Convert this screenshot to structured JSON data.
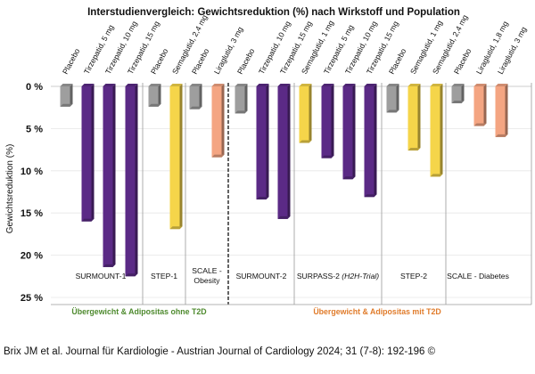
{
  "chart_data": {
    "type": "bar",
    "title": "Interstudienvergleich: Gewichtsreduktion (%) nach Wirkstoff und Population",
    "ylabel": "Gewichtsreduktion (%)",
    "ylim": [
      0,
      25
    ],
    "y_ticks": [
      "0 %",
      "5 %",
      "10 %",
      "15 %",
      "20 %",
      "25 %"
    ],
    "y_tick_values": [
      0,
      5,
      10,
      15,
      20,
      25
    ],
    "orientation": "downward bars from 0 %",
    "bars": [
      {
        "label": "Placebo",
        "value": 2.4,
        "color": "#9e9e9e",
        "study": "SURMOUNT-1"
      },
      {
        "label": "Tirzepatid, 5 mg",
        "value": 16.0,
        "color": "#5b2a86",
        "study": "SURMOUNT-1"
      },
      {
        "label": "Tirzepatid, 10 mg",
        "value": 21.4,
        "color": "#5b2a86",
        "study": "SURMOUNT-1"
      },
      {
        "label": "Tirzepatid, 15 mg",
        "value": 22.5,
        "color": "#5b2a86",
        "study": "SURMOUNT-1"
      },
      {
        "label": "Placebo",
        "value": 2.4,
        "color": "#9e9e9e",
        "study": "STEP-1"
      },
      {
        "label": "Semaglutid, 2,4 mg",
        "value": 16.9,
        "color": "#f5d54a",
        "study": "STEP-1"
      },
      {
        "label": "Placebo",
        "value": 2.7,
        "color": "#9e9e9e",
        "study": "SCALE - Obesity"
      },
      {
        "label": "Liraglutid, 3 mg",
        "value": 8.4,
        "color": "#f4a582",
        "study": "SCALE - Obesity"
      },
      {
        "label": "Placebo",
        "value": 3.2,
        "color": "#9e9e9e",
        "study": "SURMOUNT-2"
      },
      {
        "label": "Tirzepatid, 10 mg",
        "value": 13.4,
        "color": "#5b2a86",
        "study": "SURMOUNT-2"
      },
      {
        "label": "Tirzepatid, 15 mg",
        "value": 15.7,
        "color": "#5b2a86",
        "study": "SURMOUNT-2"
      },
      {
        "label": "Semaglutid, 1 mg",
        "value": 6.7,
        "color": "#f5d54a",
        "study": "SURPASS-2 (H2H-Trial)"
      },
      {
        "label": "Tirzepatid, 5 mg",
        "value": 8.5,
        "color": "#5b2a86",
        "study": "SURPASS-2 (H2H-Trial)"
      },
      {
        "label": "Tirzepatid, 10 mg",
        "value": 11.0,
        "color": "#5b2a86",
        "study": "SURPASS-2 (H2H-Trial)"
      },
      {
        "label": "Tirzepatid, 15 mg",
        "value": 13.1,
        "color": "#5b2a86",
        "study": "SURPASS-2 (H2H-Trial)"
      },
      {
        "label": "Placebo",
        "value": 3.1,
        "color": "#9e9e9e",
        "study": "STEP-2"
      },
      {
        "label": "Semaglutid, 1 mg",
        "value": 7.6,
        "color": "#f5d54a",
        "study": "STEP-2"
      },
      {
        "label": "Semaglutid, 2,4 mg",
        "value": 10.7,
        "color": "#f5d54a",
        "study": "STEP-2"
      },
      {
        "label": "Placebo",
        "value": 2.0,
        "color": "#9e9e9e",
        "study": "SCALE - Diabetes"
      },
      {
        "label": "Liraglutid, 1,8 mg",
        "value": 4.7,
        "color": "#f4a582",
        "study": "SCALE - Diabetes"
      },
      {
        "label": "Liraglutid, 3 mg",
        "value": 6.0,
        "color": "#f4a582",
        "study": "SCALE - Diabetes"
      }
    ],
    "studies": [
      {
        "name": "SURMOUNT-1",
        "italic_suffix": ""
      },
      {
        "name": "STEP-1",
        "italic_suffix": ""
      },
      {
        "name": "SCALE -",
        "name_line2": "Obesity",
        "italic_suffix": ""
      },
      {
        "name": "SURMOUNT-2",
        "italic_suffix": ""
      },
      {
        "name": "SURPASS-2 ",
        "italic_suffix": "(H2H-Trial)"
      },
      {
        "name": "STEP-2",
        "italic_suffix": ""
      },
      {
        "name": "SCALE - Diabetes",
        "italic_suffix": ""
      }
    ],
    "populations": [
      {
        "label": "Übergewicht & Adipositas ohne T2D",
        "color": "#4e8a2e"
      },
      {
        "label": "Übergewicht & Adipositas mit T2D",
        "color": "#e07b2a"
      }
    ]
  },
  "caption": "Brix JM et al. Journal für Kardiologie - Austrian Journal of Cardiology 2024; 31 (7-8): 192-196 ©"
}
